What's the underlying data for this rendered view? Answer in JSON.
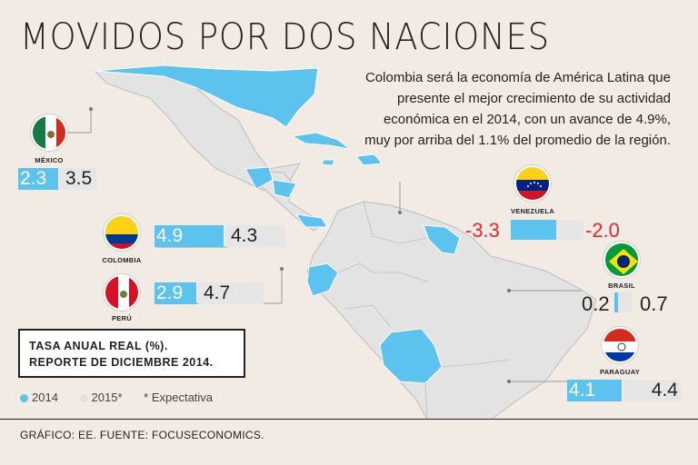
{
  "header": {
    "title": "MOVIDOS POR DOS NACIONES",
    "description": "Colombia será la economía de América Latina que presente el mejor crecimiento de su actividad económica en el 2014, con un avance de 4.9%, muy por arriba del 1.1% del promedio de la región."
  },
  "chart_data": {
    "type": "bar",
    "title": "MOVIDOS POR DOS NACIONES",
    "series": [
      {
        "name": "2014",
        "color": "#5bc3ee"
      },
      {
        "name": "2015*",
        "color": "#e6e6e6"
      }
    ],
    "countries": [
      {
        "name": "MÉXICO",
        "v2014": 2.3,
        "v2015": 3.5,
        "label2014": "2.3",
        "label2015": "3.5"
      },
      {
        "name": "COLOMBIA",
        "v2014": 4.9,
        "v2015": 4.3,
        "label2014": "4.9",
        "label2015": "4.3"
      },
      {
        "name": "PERÚ",
        "v2014": 2.9,
        "v2015": 4.7,
        "label2014": "2.9",
        "label2015": "4.7"
      },
      {
        "name": "VENEZUELA",
        "v2014": -3.3,
        "v2015": -2.0,
        "label2014": "-3.3",
        "label2015": "-2.0"
      },
      {
        "name": "BRASIL",
        "v2014": 0.2,
        "v2015": 0.7,
        "label2014": "0.2",
        "label2015": "0.7"
      },
      {
        "name": "PARAGUAY",
        "v2014": 4.1,
        "v2015": 4.4,
        "label2014": "4.1",
        "label2015": "4.4"
      }
    ]
  },
  "note": {
    "line1": "TASA ANUAL REAL (%).",
    "line2": "REPORTE DE DICIEMBRE 2014."
  },
  "legend": {
    "item2014": "2014",
    "item2015": "2015*",
    "expectation": "* Expectativa"
  },
  "footer": {
    "source": "GRÁFICO: EE. FUENTE: FOCUSECONOMICS."
  },
  "colors": {
    "accent": "#5bc3ee",
    "secondary": "#e6e6e6",
    "negative": "#e8262b",
    "background": "#f1ebe3"
  }
}
